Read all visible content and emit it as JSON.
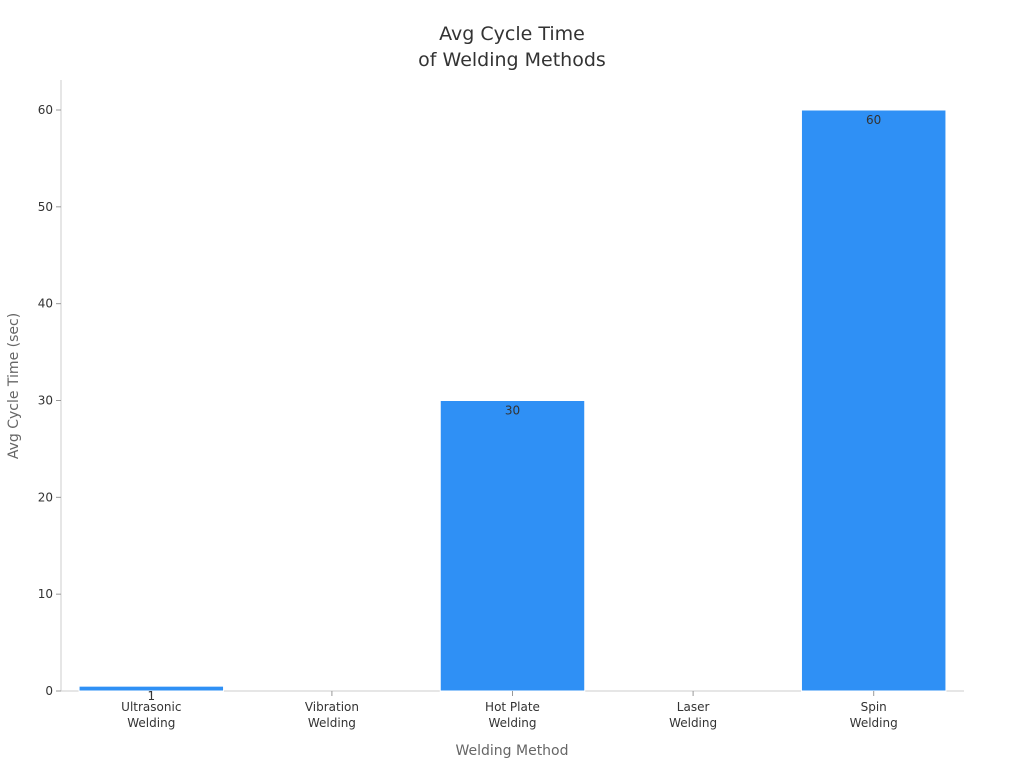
{
  "chart_data": {
    "type": "bar",
    "title_lines": [
      "Avg Cycle Time",
      "of Welding Methods"
    ],
    "xlabel": "Welding Method",
    "ylabel": "Avg Cycle Time (sec)",
    "categories": [
      [
        "Ultrasonic",
        "Welding"
      ],
      [
        "Vibration",
        "Welding"
      ],
      [
        "Hot Plate",
        "Welding"
      ],
      [
        "Laser",
        "Welding"
      ],
      [
        "Spin",
        "Welding"
      ]
    ],
    "values": [
      0.5,
      0,
      30,
      0,
      60
    ],
    "data_labels": [
      "1",
      "",
      "30",
      "",
      "60"
    ],
    "ylim": [
      0,
      63
    ],
    "yticks": [
      0,
      10,
      20,
      30,
      40,
      50,
      60
    ],
    "grid": false,
    "colors": {
      "bar": "#2f90f5",
      "bar_edge": "#ffffff"
    }
  }
}
